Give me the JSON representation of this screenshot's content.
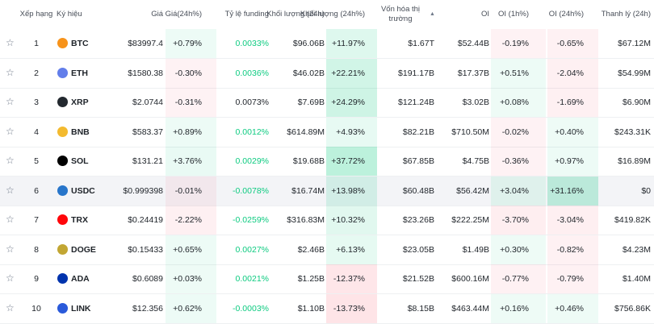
{
  "header": {
    "columns": [
      "Xếp hạng",
      "Ký hiệu",
      "Giá",
      "Giá(24h%)",
      "Tỷ lệ funding",
      "Khối lượng (24h)",
      "Khối lượng (24h%)",
      "Vốn hóa thị trường",
      "OI",
      "OI (1h%)",
      "OI (24h%)",
      "Thanh lý (24h)"
    ]
  },
  "table": {
    "rows": [
      [
        "1",
        "BTC",
        "$83997.4",
        "+0.79%",
        "0.0033%",
        "$96.06B",
        "+11.97%",
        "$1.67T",
        "$52.44B",
        "-0.19%",
        "-0.65%",
        "$67.12M"
      ],
      [
        "2",
        "ETH",
        "$1580.38",
        "-0.30%",
        "0.0036%",
        "$46.02B",
        "+22.21%",
        "$191.17B",
        "$17.37B",
        "+0.51%",
        "-2.04%",
        "$54.99M"
      ],
      [
        "3",
        "XRP",
        "$2.0744",
        "-0.31%",
        "0.0073%",
        "$7.69B",
        "+24.29%",
        "$121.24B",
        "$3.02B",
        "+0.08%",
        "-1.69%",
        "$6.90M"
      ],
      [
        "4",
        "BNB",
        "$583.37",
        "+0.89%",
        "0.0012%",
        "$614.89M",
        "+4.93%",
        "$82.21B",
        "$710.50M",
        "-0.02%",
        "+0.40%",
        "$243.31K"
      ],
      [
        "5",
        "SOL",
        "$131.21",
        "+3.76%",
        "0.0029%",
        "$19.68B",
        "+37.72%",
        "$67.85B",
        "$4.75B",
        "-0.36%",
        "+0.97%",
        "$16.89M"
      ],
      [
        "6",
        "USDC",
        "$0.999398",
        "-0.01%",
        "-0.0078%",
        "$16.74M",
        "+13.98%",
        "$60.48B",
        "$56.42M",
        "+3.04%",
        "+31.16%",
        "$0"
      ],
      [
        "7",
        "TRX",
        "$0.24419",
        "-2.22%",
        "-0.0259%",
        "$316.83M",
        "+10.32%",
        "$23.26B",
        "$222.25M",
        "-3.70%",
        "-3.04%",
        "$419.82K"
      ],
      [
        "8",
        "DOGE",
        "$0.15433",
        "+0.65%",
        "0.0027%",
        "$2.46B",
        "+6.13%",
        "$23.05B",
        "$1.49B",
        "+0.30%",
        "-0.82%",
        "$4.23M"
      ],
      [
        "9",
        "ADA",
        "$0.6089",
        "+0.03%",
        "0.0021%",
        "$1.25B",
        "-12.37%",
        "$21.52B",
        "$600.16M",
        "-0.77%",
        "-0.79%",
        "$1.40M"
      ],
      [
        "10",
        "LINK",
        "$12.356",
        "+0.62%",
        "-0.0003%",
        "$1.10B",
        "-13.73%",
        "$8.15B",
        "$463.44M",
        "+0.16%",
        "+0.46%",
        "$756.86K"
      ]
    ]
  }
}
